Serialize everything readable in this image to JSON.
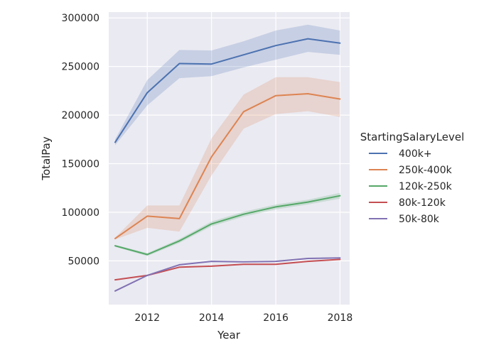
{
  "chart_data": {
    "type": "line",
    "xlabel": "Year",
    "ylabel": "TotalPay",
    "xlim": [
      2010.8,
      2018.3
    ],
    "ylim": [
      5000,
      306000
    ],
    "x_ticks": [
      2012,
      2014,
      2016,
      2018
    ],
    "y_ticks": [
      50000,
      100000,
      150000,
      200000,
      250000,
      300000
    ],
    "grid": true,
    "legend_title": "StartingSalaryLevel",
    "legend_position": "right",
    "x": [
      2011,
      2012,
      2013,
      2014,
      2015,
      2016,
      2017,
      2018
    ],
    "series": [
      {
        "name": "400k+",
        "color": "#4c72b0",
        "values": [
          172000,
          223000,
          253000,
          252500,
          262000,
          271500,
          278500,
          274000
        ],
        "ci_lower": [
          169000,
          210000,
          238000,
          240000,
          249000,
          257000,
          265000,
          262000
        ],
        "ci_upper": [
          175000,
          236000,
          267000,
          266500,
          276000,
          287000,
          293000,
          287000
        ]
      },
      {
        "name": "250k-400k",
        "color": "#dd8452",
        "values": [
          73000,
          96000,
          93500,
          157000,
          203500,
          220000,
          222000,
          216500
        ],
        "ci_lower": [
          72000,
          84000,
          80000,
          138000,
          186000,
          201000,
          204000,
          198000
        ],
        "ci_upper": [
          74000,
          107000,
          107000,
          176000,
          221000,
          239000,
          239000,
          234000
        ]
      },
      {
        "name": "120k-250k",
        "color": "#55a868",
        "values": [
          65500,
          56500,
          70500,
          88000,
          98000,
          105500,
          110500,
          117000
        ],
        "ci_lower": [
          64500,
          55000,
          68500,
          85500,
          95500,
          103000,
          108000,
          114000
        ],
        "ci_upper": [
          66500,
          58000,
          72500,
          90500,
          100500,
          108000,
          113000,
          120000
        ]
      },
      {
        "name": "80k-120k",
        "color": "#c44e52",
        "values": [
          30500,
          35000,
          43500,
          44500,
          46500,
          46500,
          49500,
          51500
        ],
        "ci_lower": [
          30000,
          34500,
          43000,
          44000,
          46000,
          46000,
          49000,
          51000
        ],
        "ci_upper": [
          31000,
          35500,
          44000,
          45000,
          47000,
          47000,
          50000,
          52000
        ]
      },
      {
        "name": "50k-80k",
        "color": "#8172b3",
        "values": [
          19000,
          35000,
          46000,
          49500,
          49000,
          49500,
          52500,
          53000
        ],
        "ci_lower": [
          18500,
          34500,
          45500,
          49000,
          48500,
          49000,
          52000,
          52500
        ],
        "ci_upper": [
          19500,
          35500,
          46500,
          50000,
          49500,
          50000,
          53000,
          53500
        ]
      }
    ]
  }
}
